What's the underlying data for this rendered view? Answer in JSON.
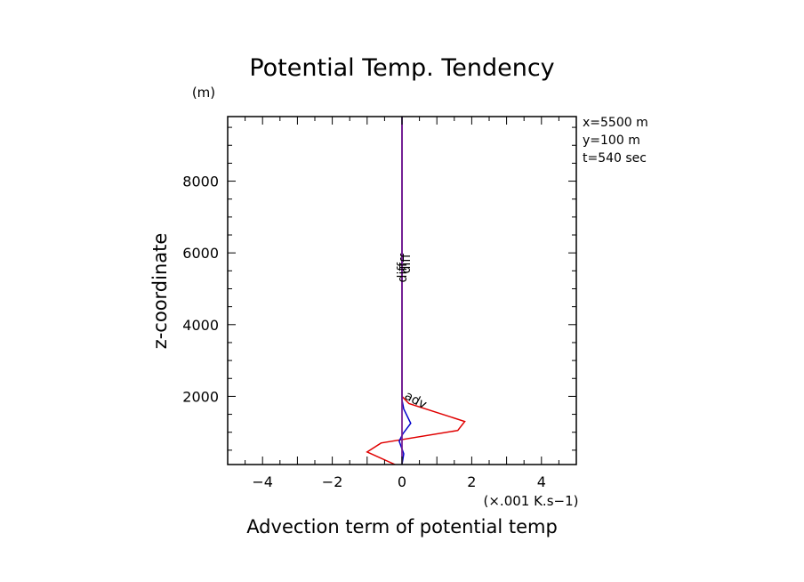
{
  "chart_data": {
    "type": "line",
    "title": "Potential Temp. Tendency",
    "xlabel": "Advection term of potential temp",
    "ylabel": "z-coordinate",
    "x_unit": "(×.001 K.s−1)",
    "y_unit": "(m)",
    "info": [
      "x=5500 m",
      "y=100 m",
      "t=540 sec"
    ],
    "xlim": [
      -5,
      5
    ],
    "ylim": [
      100,
      9800
    ],
    "x_ticks": [
      -4,
      -2,
      0,
      2,
      4
    ],
    "x_tick_labels": [
      "−4",
      "−2",
      "0",
      "2",
      "4"
    ],
    "y_ticks": [
      2000,
      4000,
      6000,
      8000
    ],
    "y_tick_labels": [
      "2000",
      "4000",
      "6000",
      "8000"
    ],
    "grid": false,
    "series": [
      {
        "name": "adv",
        "color": "#e00000",
        "x": [
          -0.2,
          -1.0,
          -0.6,
          1.6,
          1.8,
          0.2,
          0.0,
          0.0
        ],
        "y": [
          100,
          450,
          700,
          1050,
          1300,
          1800,
          2000,
          9800
        ]
      },
      {
        "name": "diff",
        "color": "#0000cc",
        "x": [
          0.0,
          0.05,
          -0.08,
          0.02,
          0.25,
          0.05,
          0.0,
          0.0
        ],
        "y": [
          100,
          400,
          750,
          950,
          1250,
          1650,
          1900,
          9800
        ]
      },
      {
        "name": "",
        "color": "#00cc00",
        "x": [
          0.0,
          0.0
        ],
        "y": [
          100,
          9800
        ]
      },
      {
        "name": "",
        "color": "#8800aa",
        "x": [
          0.0,
          0.0
        ],
        "y": [
          100,
          9800
        ]
      }
    ]
  },
  "colors": {
    "adv": "#e00000",
    "diff": "#0000cc",
    "green": "#00cc00",
    "purple": "#8800aa",
    "axis": "#000000"
  }
}
